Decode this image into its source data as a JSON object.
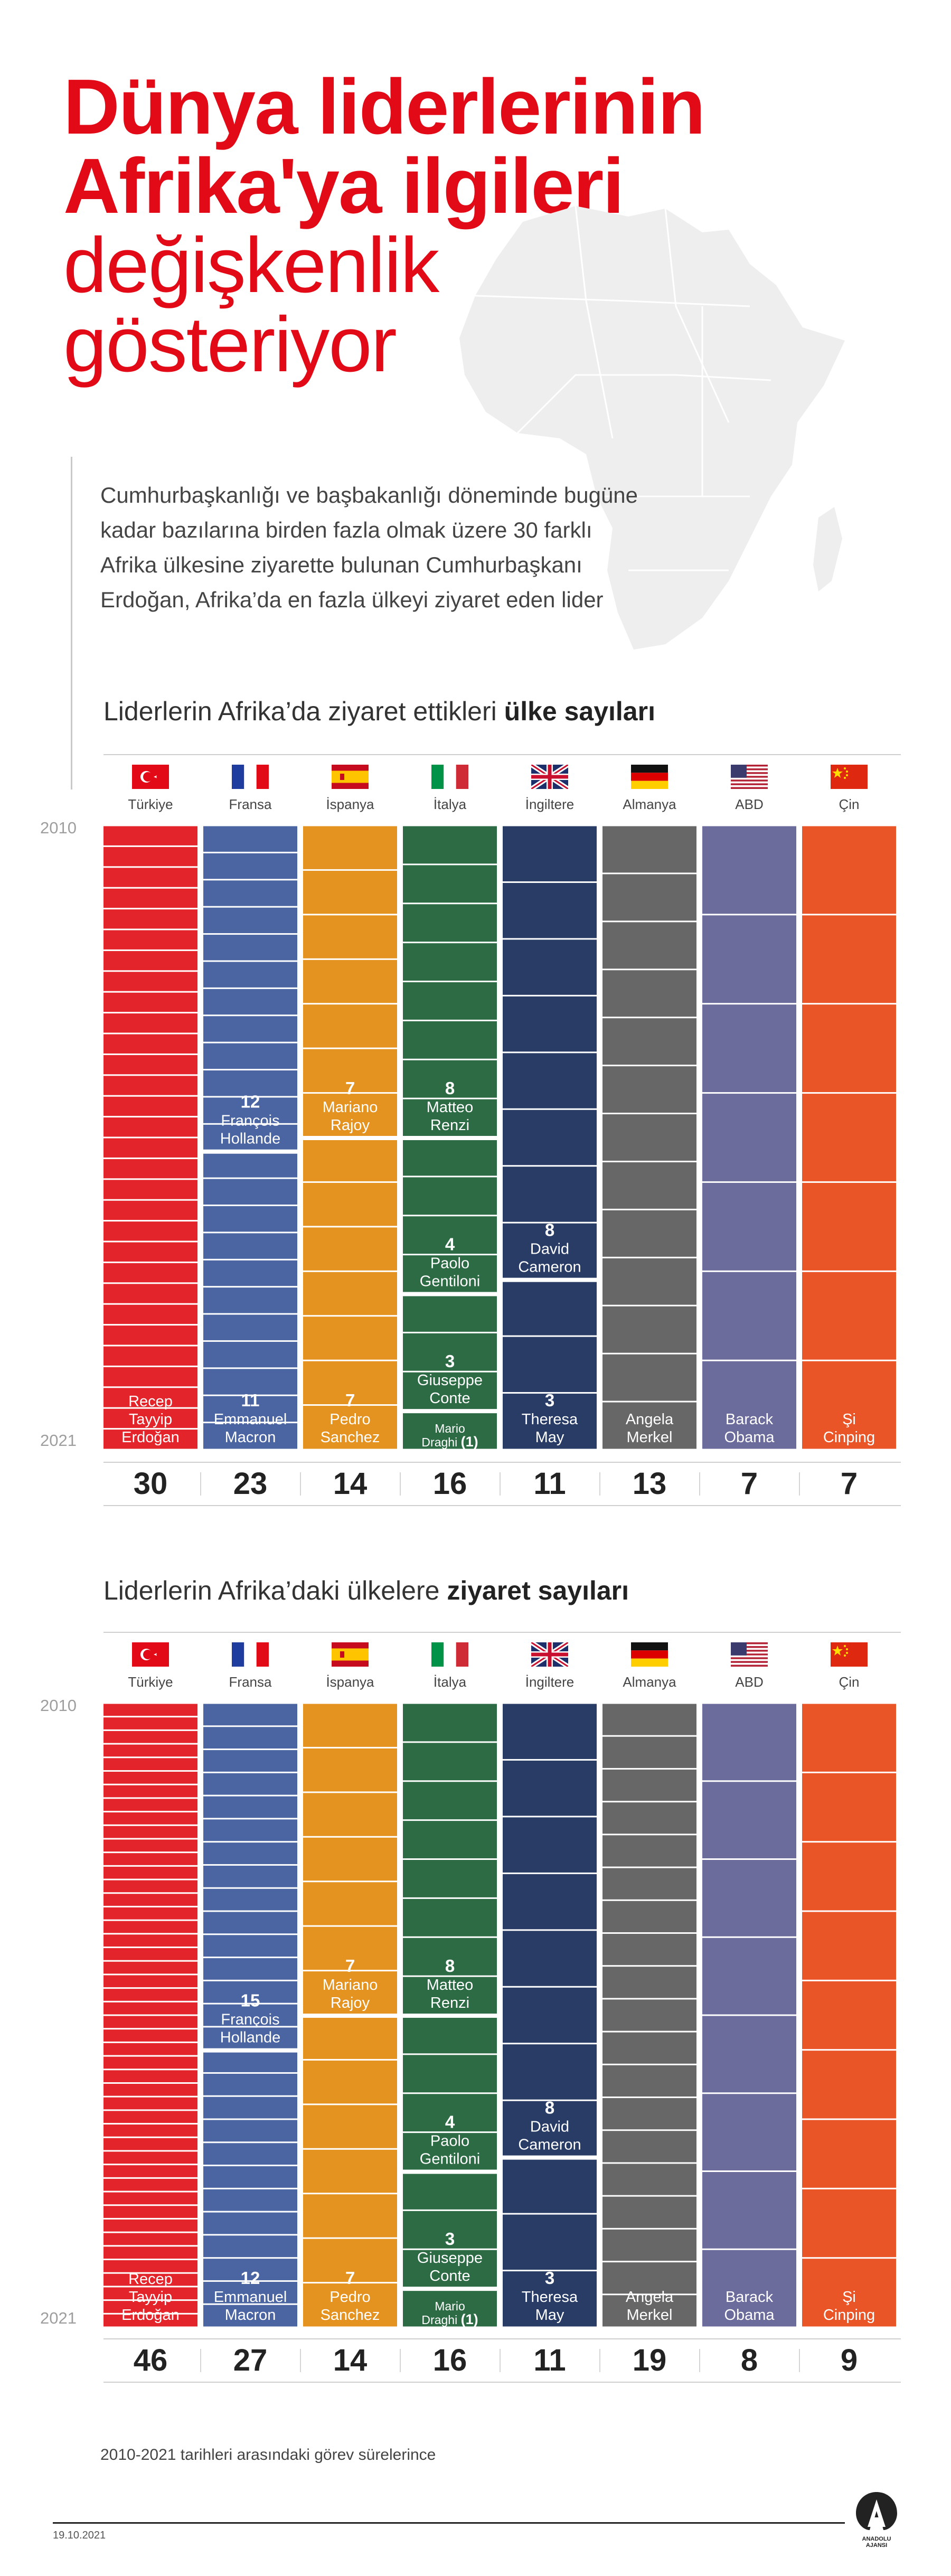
{
  "title": {
    "line1": "Dünya liderlerinin",
    "line2": "Afrika'ya ilgileri",
    "line3": "değişkenlik",
    "line4": "gösteriyor"
  },
  "intro": "Cumhurbaşkanlığı ve başbakanlığı döneminde bugüne kadar bazılarına birden fazla olmak üzere 30 farklı Afrika ülkesine ziyarette bulunan Cumhurbaşkanı Erdoğan, Afrika’da en fazla ülkeyi ziyaret eden lider",
  "year_start": "2010",
  "year_end": "2021",
  "countries": [
    {
      "name": "Türkiye",
      "flag": "turkey-flag-icon",
      "color": "#e3242b"
    },
    {
      "name": "Fransa",
      "flag": "france-flag-icon",
      "color": "#4a65a2"
    },
    {
      "name": "İspanya",
      "flag": "spain-flag-icon",
      "color": "#e59320"
    },
    {
      "name": "İtalya",
      "flag": "italy-flag-icon",
      "color": "#2d6b45"
    },
    {
      "name": "İngiltere",
      "flag": "uk-flag-icon",
      "color": "#283c66"
    },
    {
      "name": "Almanya",
      "flag": "germany-flag-icon",
      "color": "#676767"
    },
    {
      "name": "ABD",
      "flag": "usa-flag-icon",
      "color": "#6b6b9c"
    },
    {
      "name": "Çin",
      "flag": "china-flag-icon",
      "color": "#ea5528"
    }
  ],
  "chart_data": [
    {
      "type": "bar",
      "title_prefix": "Liderlerin Afrika’da ziyaret ettikleri ",
      "title_bold": "ülke sayıları",
      "categories": [
        "Türkiye",
        "Fransa",
        "İspanya",
        "İtalya",
        "İngiltere",
        "Almanya",
        "ABD",
        "Çin"
      ],
      "totals": [
        30,
        23,
        14,
        16,
        11,
        13,
        7,
        7
      ],
      "stacks": [
        [
          {
            "value": 30,
            "leader": "Recep Tayyip Erdoğan",
            "label": "Recep Tayyip Erdoğan",
            "num": ""
          }
        ],
        [
          {
            "value": 11,
            "leader": "Emmanuel Macron",
            "label": "Emmanuel Macron",
            "num": "11"
          },
          {
            "value": 12,
            "leader": "François Hollande",
            "label": "François Hollande",
            "num": "12"
          }
        ],
        [
          {
            "value": 7,
            "leader": "Pedro Sanchez",
            "label": "Pedro Sanchez",
            "num": "7"
          },
          {
            "value": 7,
            "leader": "Mariano Rajoy",
            "label": "Mariano Rajoy",
            "num": "7"
          }
        ],
        [
          {
            "value": 1,
            "leader": "Mario Draghi",
            "label": "Mario Draghi",
            "num": "(1)"
          },
          {
            "value": 3,
            "leader": "Giuseppe Conte",
            "label": "Giuseppe Conte",
            "num": "3"
          },
          {
            "value": 4,
            "leader": "Paolo Gentiloni",
            "label": "Paolo Gentiloni",
            "num": "4"
          },
          {
            "value": 8,
            "leader": "Matteo Renzi",
            "label": "Matteo Renzi",
            "num": "8"
          }
        ],
        [
          {
            "value": 3,
            "leader": "Theresa May",
            "label": "Theresa May",
            "num": "3"
          },
          {
            "value": 8,
            "leader": "David Cameron",
            "label": "David Cameron",
            "num": "8"
          }
        ],
        [
          {
            "value": 13,
            "leader": "Angela Merkel",
            "label": "Angela Merkel",
            "num": ""
          }
        ],
        [
          {
            "value": 7,
            "leader": "Barack Obama",
            "label": "Barack Obama",
            "num": ""
          }
        ],
        [
          {
            "value": 7,
            "leader": "Şi Cinping",
            "label": "Şi Cinping",
            "num": ""
          }
        ]
      ]
    },
    {
      "type": "bar",
      "title_prefix": "Liderlerin Afrika’daki ülkelere ",
      "title_bold": "ziyaret sayıları",
      "categories": [
        "Türkiye",
        "Fransa",
        "İspanya",
        "İtalya",
        "İngiltere",
        "Almanya",
        "ABD",
        "Çin"
      ],
      "totals": [
        46,
        27,
        14,
        16,
        11,
        19,
        8,
        9
      ],
      "stacks": [
        [
          {
            "value": 46,
            "leader": "Recep Tayyip Erdoğan",
            "label": "Recep Tayyip Erdoğan",
            "num": ""
          }
        ],
        [
          {
            "value": 12,
            "leader": "Emmanuel Macron",
            "label": "Emmanuel Macron",
            "num": "12"
          },
          {
            "value": 15,
            "leader": "François Hollande",
            "label": "François Hollande",
            "num": "15"
          }
        ],
        [
          {
            "value": 7,
            "leader": "Pedro Sanchez",
            "label": "Pedro Sanchez",
            "num": "7"
          },
          {
            "value": 7,
            "leader": "Mariano Rajoy",
            "label": "Mariano Rajoy",
            "num": "7"
          }
        ],
        [
          {
            "value": 1,
            "leader": "Mario Draghi",
            "label": "Mario Draghi",
            "num": "(1)"
          },
          {
            "value": 3,
            "leader": "Giuseppe Conte",
            "label": "Giuseppe Conte",
            "num": "3"
          },
          {
            "value": 4,
            "leader": "Paolo Gentiloni",
            "label": "Paolo Gentiloni",
            "num": "4"
          },
          {
            "value": 8,
            "leader": "Matteo Renzi",
            "label": "Matteo Renzi",
            "num": "8"
          }
        ],
        [
          {
            "value": 3,
            "leader": "Theresa May",
            "label": "Theresa May",
            "num": "3"
          },
          {
            "value": 8,
            "leader": "David Cameron",
            "label": "David Cameron",
            "num": "8"
          }
        ],
        [
          {
            "value": 19,
            "leader": "Angela Merkel",
            "label": "Angela Merkel",
            "num": ""
          }
        ],
        [
          {
            "value": 8,
            "leader": "Barack Obama",
            "label": "Barack Obama",
            "num": ""
          }
        ],
        [
          {
            "value": 9,
            "leader": "Şi Cinping",
            "label": "Şi Cinping",
            "num": ""
          }
        ]
      ]
    }
  ],
  "note": "2010-2021 tarihleri arasındaki görev sürelerince",
  "date": "19.10.2021",
  "logo": {
    "icon": "anadolu-ajansi-logo-icon",
    "text": "ANADOLU AJANSI"
  }
}
